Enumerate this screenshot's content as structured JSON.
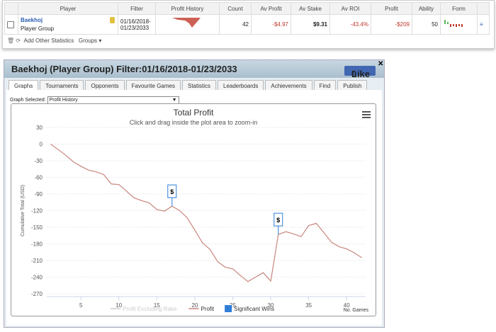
{
  "table": {
    "headers": [
      "Player",
      "Filter",
      "Profit History",
      "Count",
      "Av Profit",
      "Av Stake",
      "Av ROI",
      "Profit",
      "Ability",
      "Form"
    ],
    "row": {
      "player": "Baekhoj",
      "player_type": "Player Group",
      "filter": "01/16/2018-01/23/2033",
      "count": 42,
      "av_profit": "-$4.97",
      "av_stake": "$9.31",
      "av_roi": "-43.4%",
      "profit": "-$209",
      "ability": 50
    }
  },
  "toolbar": {
    "add": "Add Other Statistics",
    "groups": "Groups"
  },
  "panel": {
    "title": "Baekhoj (Player Group) Filter:01/16/2018-01/23/2033",
    "like": "Like",
    "like_count": 0,
    "tabs": [
      "Graphs",
      "Tournaments",
      "Opponents",
      "Favourite Games",
      "Statistics",
      "Leaderboards",
      "Achievements",
      "Find",
      "Publish"
    ],
    "active_tab": 0,
    "graph_selected_label": "Graph Selected:",
    "graph_selected": "Profit History"
  },
  "chart_data": {
    "type": "line",
    "title": "Total Profit",
    "subtitle": "Click and drag inside the plot area to zoom-in",
    "xlabel": "No. Games",
    "ylabel": "Cumulative Total (USD)",
    "x": [
      1,
      2,
      3,
      4,
      5,
      6,
      7,
      8,
      9,
      10,
      11,
      12,
      13,
      14,
      15,
      16,
      17,
      18,
      19,
      20,
      21,
      22,
      23,
      24,
      25,
      26,
      27,
      28,
      29,
      30,
      31,
      32,
      33,
      34,
      35,
      36,
      37,
      38,
      39,
      40,
      41,
      42
    ],
    "series": [
      {
        "name": "Profit",
        "color": "#c8867d",
        "values": [
          0,
          -10,
          -20,
          -32,
          -40,
          -47,
          -50,
          -55,
          -72,
          -73,
          -85,
          -97,
          -102,
          -106,
          -118,
          -121,
          -112,
          -120,
          -133,
          -155,
          -178,
          -190,
          -212,
          -222,
          -225,
          -237,
          -248,
          -240,
          -232,
          -247,
          -163,
          -158,
          -162,
          -167,
          -147,
          -143,
          -160,
          -177,
          -185,
          -189,
          -196,
          -205
        ]
      }
    ],
    "legend_hidden": [
      "Profit Excluding Rake"
    ],
    "flags": {
      "name": "Significant Wins",
      "color": "#2f7ed8",
      "label": "$",
      "x": [
        17,
        31
      ]
    },
    "xlim": [
      0.5,
      42.5
    ],
    "xticks": [
      5,
      10,
      15,
      20,
      25,
      30,
      35,
      40
    ],
    "ylim": [
      -270,
      30
    ],
    "yticks": [
      30,
      0,
      -30,
      -60,
      -90,
      -120,
      -150,
      -180,
      -210,
      -240,
      -270
    ],
    "grid": true
  }
}
